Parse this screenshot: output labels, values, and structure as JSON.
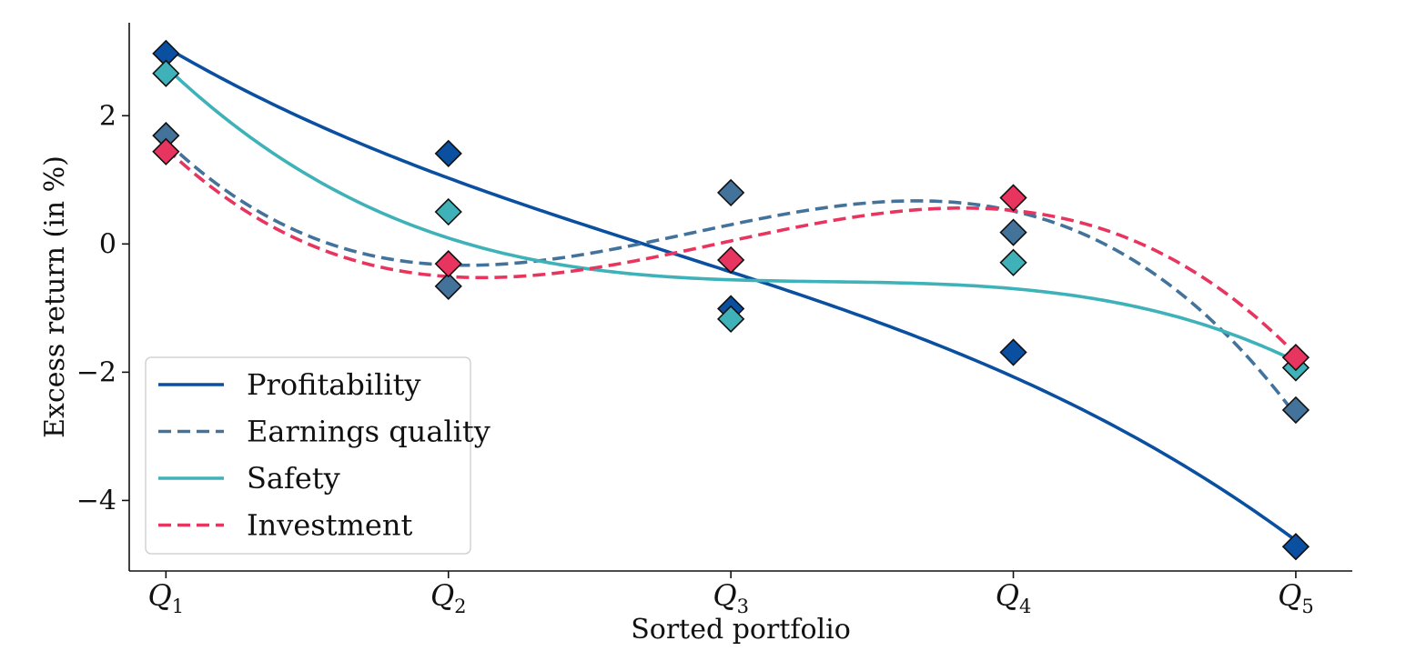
{
  "chart_data": {
    "type": "scatter",
    "xlabel": "Sorted portfolio",
    "ylabel": "Excess return (in %)",
    "categories": [
      "Q1",
      "Q2",
      "Q3",
      "Q4",
      "Q5"
    ],
    "x": [
      1,
      2,
      3,
      4,
      5
    ],
    "xlim": [
      0.87,
      5.2
    ],
    "ylim": [
      -5.1,
      3.45
    ],
    "yticks": [
      2,
      0,
      -2,
      -4
    ],
    "ytick_labels": [
      "2",
      "0",
      "−2",
      "−4"
    ],
    "grid": false,
    "legend_position": "lower-left",
    "marker": "diamond",
    "series": [
      {
        "name": "Profitability",
        "color": "#0a4fa0",
        "line_style": "solid",
        "values": [
          2.97,
          1.41,
          -1.01,
          -1.69,
          -4.72
        ]
      },
      {
        "name": "Earnings quality",
        "color": "#43729a",
        "line_style": "dashed",
        "values": [
          1.69,
          -0.66,
          0.8,
          0.18,
          -2.59
        ]
      },
      {
        "name": "Safety",
        "color": "#3eb2b8",
        "line_style": "solid",
        "values": [
          2.66,
          0.5,
          -1.17,
          -0.29,
          -1.93
        ]
      },
      {
        "name": "Investment",
        "color": "#e8355f",
        "line_style": "dashed",
        "values": [
          1.44,
          -0.31,
          -0.25,
          0.72,
          -1.77
        ]
      }
    ]
  }
}
